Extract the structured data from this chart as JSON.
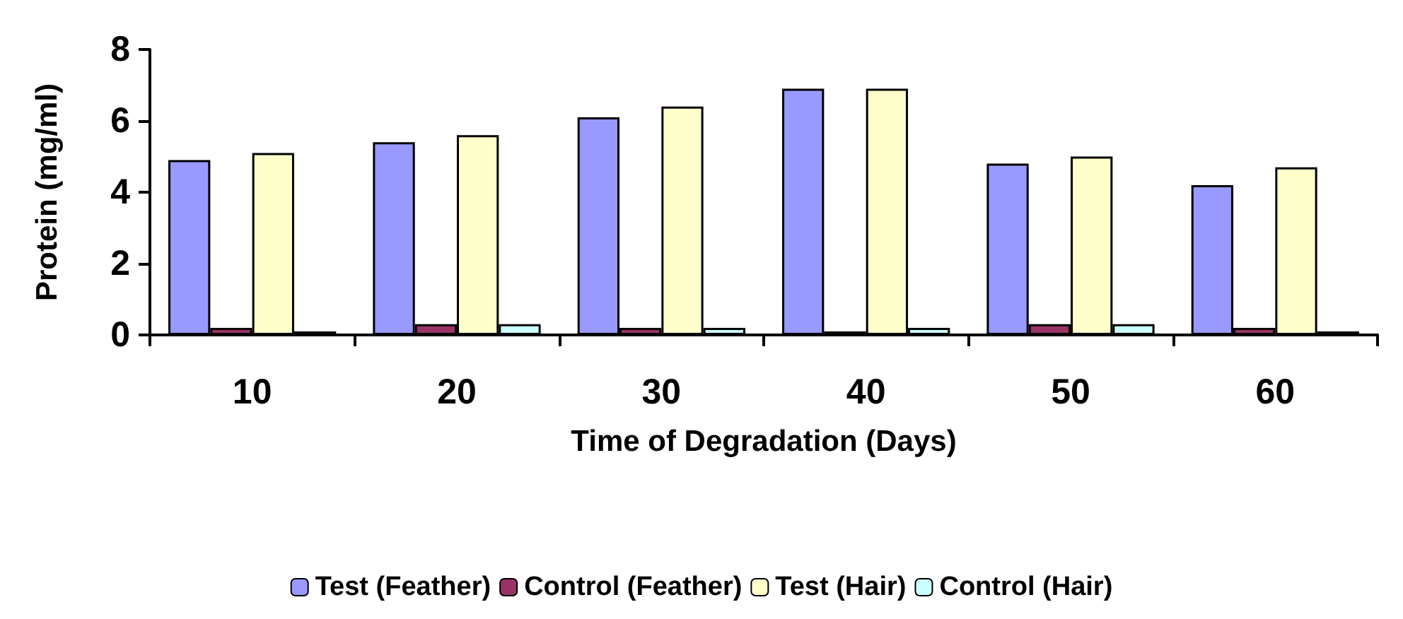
{
  "chart_data": {
    "type": "bar",
    "xlabel": "Time of Degradation (Days)",
    "ylabel": "Protein (mg/ml)",
    "categories": [
      "10",
      "20",
      "30",
      "40",
      "50",
      "60"
    ],
    "series": [
      {
        "name": "Test (Feather)",
        "color": "#9999ff",
        "values": [
          4.9,
          5.4,
          6.1,
          6.9,
          4.8,
          4.2
        ]
      },
      {
        "name": "Control (Feather)",
        "color": "#993366",
        "values": [
          0.2,
          0.3,
          0.2,
          0.1,
          0.3,
          0.2
        ]
      },
      {
        "name": "Test (Hair)",
        "color": "#ffffcc",
        "values": [
          5.1,
          5.6,
          6.4,
          6.9,
          5.0,
          4.7
        ]
      },
      {
        "name": "Control (Hair)",
        "color": "#ccffff",
        "values": [
          0.1,
          0.3,
          0.2,
          0.2,
          0.3,
          0.1
        ]
      }
    ],
    "ylim": [
      0,
      8
    ],
    "yticks": [
      0,
      2,
      4,
      6,
      8
    ],
    "grid": false,
    "legend": "bottom"
  }
}
